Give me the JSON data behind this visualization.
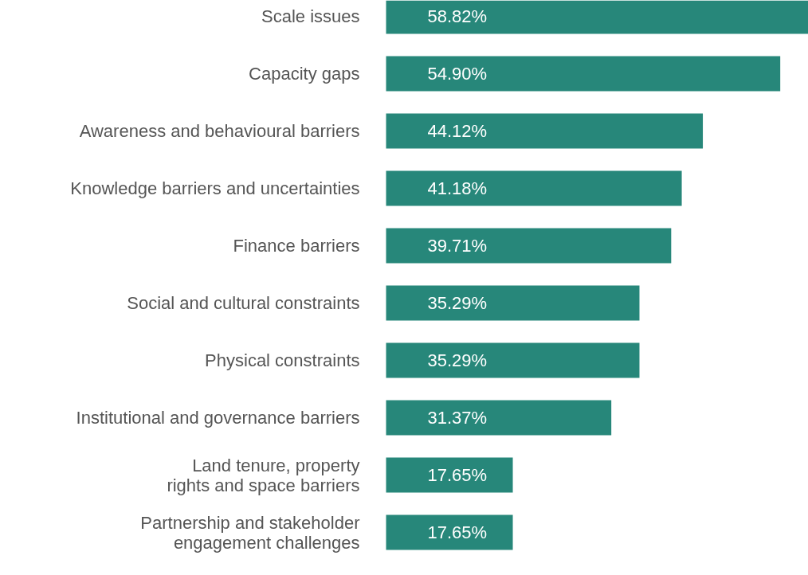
{
  "chart_data": {
    "type": "bar",
    "orientation": "horizontal",
    "categories": [
      "Scale issues",
      "Capacity gaps",
      "Awareness and behavioural barriers",
      "Knowledge barriers and uncertainties",
      "Finance barriers",
      "Social and cultural constraints",
      "Physical constraints",
      "Institutional and governance barriers",
      "Land tenure, property\nrights and space barriers",
      "Partnership and stakeholder\nengagement challenges"
    ],
    "values": [
      58.82,
      54.9,
      44.12,
      41.18,
      39.71,
      35.29,
      35.29,
      31.37,
      17.65,
      17.65
    ],
    "value_labels": [
      "58.82%",
      "54.90%",
      "44.12%",
      "41.18%",
      "39.71%",
      "35.29%",
      "35.29%",
      "31.37%",
      "17.65%",
      "17.65%"
    ],
    "color": "#27877a"
  }
}
